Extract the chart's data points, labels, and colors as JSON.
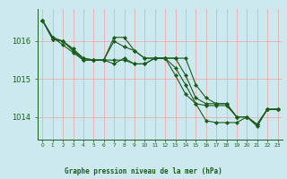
{
  "background_color": "#cde9f0",
  "grid_color_v": "#f5a0a0",
  "grid_color_h": "#f5a0a0",
  "line_color": "#1a5c1a",
  "marker_color": "#1a5c1a",
  "xlabel": "Graphe pression niveau de la mer (hPa)",
  "ylim": [
    1013.4,
    1016.85
  ],
  "xlim": [
    -0.5,
    23.5
  ],
  "yticks": [
    1014,
    1015,
    1016
  ],
  "xticks": [
    0,
    1,
    2,
    3,
    4,
    5,
    6,
    7,
    8,
    9,
    10,
    11,
    12,
    13,
    14,
    15,
    16,
    17,
    18,
    19,
    20,
    21,
    22,
    23
  ],
  "series": [
    [
      1016.55,
      1016.1,
      1015.9,
      1015.7,
      1015.5,
      1015.5,
      1015.5,
      1015.4,
      1015.55,
      1015.4,
      1015.4,
      1015.55,
      1015.55,
      1015.1,
      1014.6,
      1014.35,
      1013.9,
      1013.85,
      1013.85,
      1013.85,
      1014.0,
      1013.75,
      1014.2,
      1014.2
    ],
    [
      1016.55,
      1016.1,
      1016.0,
      1015.75,
      1015.55,
      1015.5,
      1015.5,
      1016.0,
      1015.85,
      1015.75,
      1015.55,
      1015.55,
      1015.55,
      1015.3,
      1014.85,
      1014.35,
      1014.3,
      1014.3,
      1014.3,
      1014.0,
      1014.0,
      1013.8,
      1014.2,
      1014.2
    ],
    [
      1016.55,
      1016.05,
      1016.0,
      1015.75,
      1015.5,
      1015.5,
      1015.5,
      1016.1,
      1016.1,
      1015.75,
      1015.55,
      1015.55,
      1015.55,
      1015.55,
      1015.1,
      1014.5,
      1014.35,
      1014.35,
      1014.35,
      1014.0,
      1014.0,
      1013.8,
      1014.2,
      1014.2
    ],
    [
      1016.55,
      1016.05,
      1016.0,
      1015.8,
      1015.55,
      1015.5,
      1015.5,
      1015.5,
      1015.5,
      1015.4,
      1015.4,
      1015.55,
      1015.55,
      1015.55,
      1015.55,
      1014.85,
      1014.5,
      1014.35,
      1014.35,
      1014.0,
      1014.0,
      1013.8,
      1014.2,
      1014.2
    ]
  ],
  "xlabel_fontsize": 5.5,
  "xlabel_fontweight": "bold",
  "ytick_fontsize": 6,
  "xtick_fontsize": 4.2,
  "linewidth": 0.8,
  "markersize": 2.2
}
